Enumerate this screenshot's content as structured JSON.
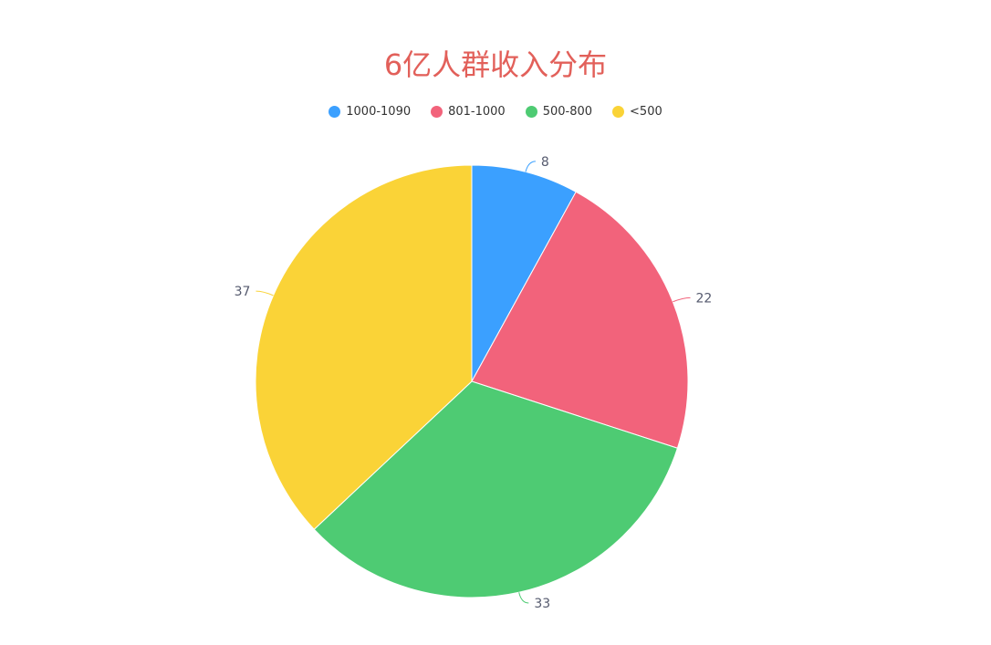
{
  "chart_data": {
    "type": "pie",
    "title": "6亿人群收入分布",
    "legend_position": "top",
    "series": [
      {
        "name": "1000-1090",
        "value": 8,
        "color": "#3ba0ff"
      },
      {
        "name": "801-1000",
        "value": 22,
        "color": "#f2637b"
      },
      {
        "name": "500-800",
        "value": 33,
        "color": "#4ecb73"
      },
      {
        "name": "<500",
        "value": 37,
        "color": "#fad337"
      }
    ],
    "label_color": "#555a6e",
    "start": "top",
    "direction": "clockwise"
  }
}
